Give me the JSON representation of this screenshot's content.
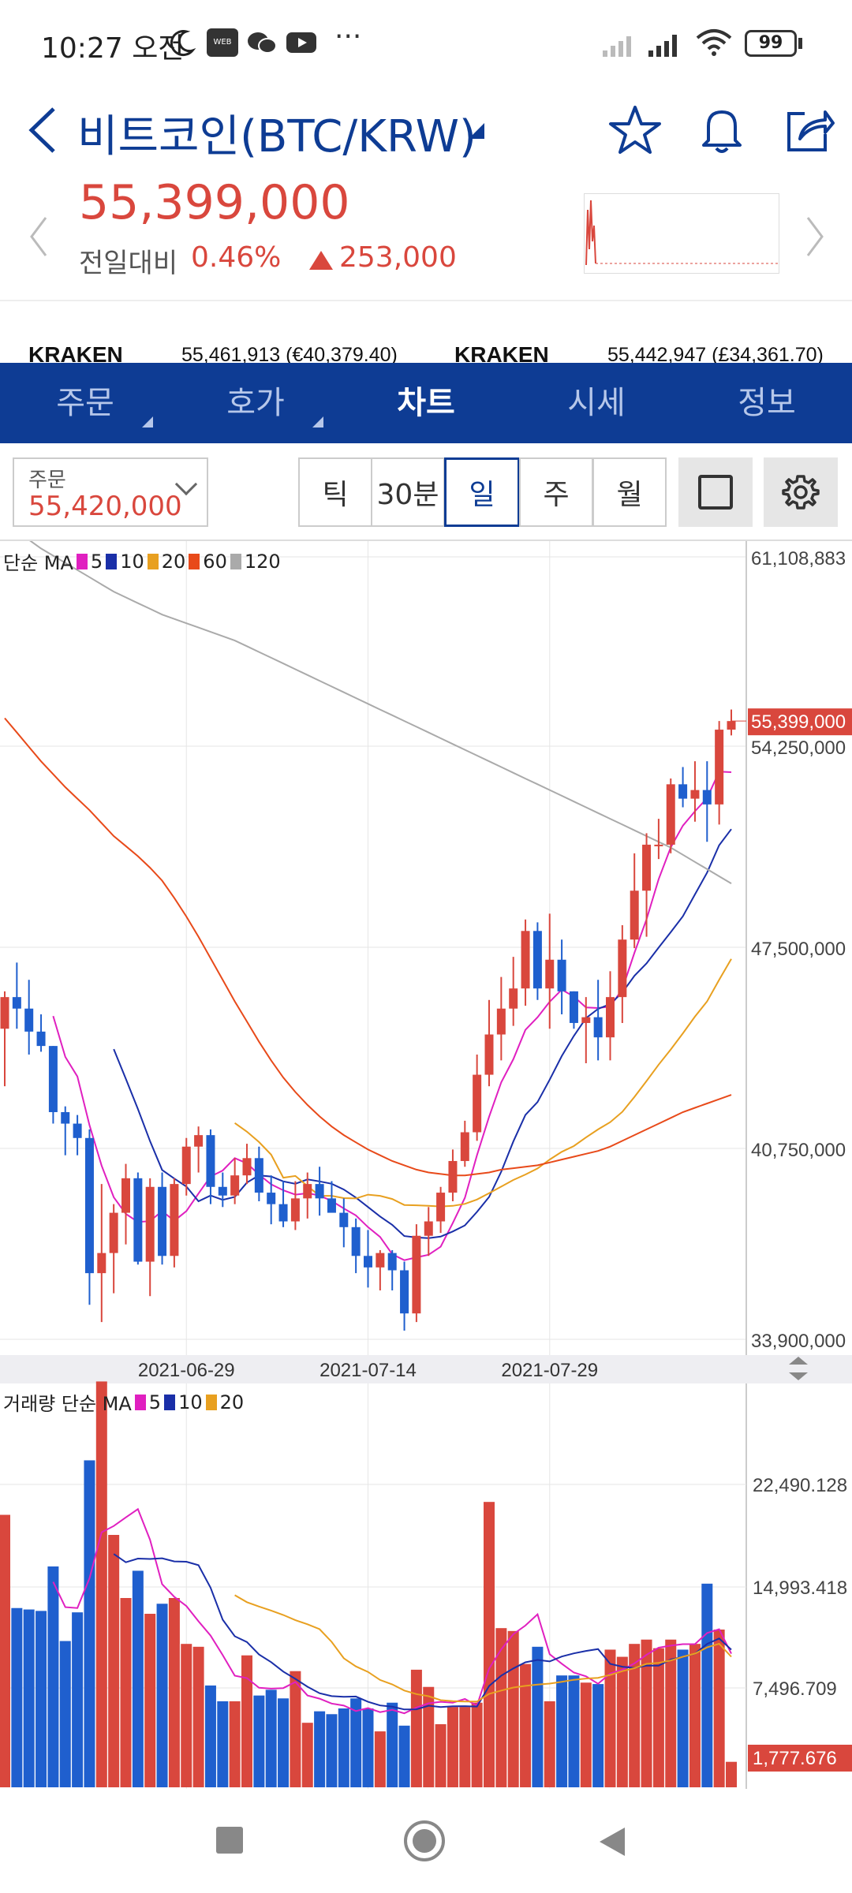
{
  "status_bar": {
    "time": "10:27 오전",
    "icons": [
      "moon-icon",
      "webtoon-icon",
      "wechat-icon",
      "youtube-icon",
      "more-icon",
      "signal-icon",
      "signal-icon",
      "wifi-icon",
      "battery-icon"
    ],
    "battery": "99"
  },
  "header": {
    "title": "비트코인(BTC/KRW)",
    "price": "55,399,000",
    "change_label": "전일대비",
    "change_pct": "0.46%",
    "change_amount": "253,000",
    "accent_color": "#d9473d",
    "brand_color": "#0e3c94"
  },
  "ticker": [
    {
      "exchange": "KRAKEN",
      "value": "55,461,913 (€40,379.40)"
    },
    {
      "exchange": "KRAKEN",
      "value": "55,442,947 (£34,361.70)"
    }
  ],
  "tabs": [
    {
      "label": "주문",
      "has_menu": true
    },
    {
      "label": "호가",
      "has_menu": true
    },
    {
      "label": "차트",
      "active": true
    },
    {
      "label": "시세"
    },
    {
      "label": "정보"
    }
  ],
  "order": {
    "label": "주문",
    "value": "55,420,000"
  },
  "periods": [
    "틱",
    "30분",
    "일",
    "주",
    "월"
  ],
  "active_period": "일",
  "price_legend": {
    "prefix": "단순 MA",
    "items": [
      {
        "label": "5",
        "color": "#e020c0"
      },
      {
        "label": "10",
        "color": "#1a2fa8"
      },
      {
        "label": "20",
        "color": "#e8a020"
      },
      {
        "label": "60",
        "color": "#e84a1a"
      },
      {
        "label": "120",
        "color": "#aaaaaa"
      }
    ]
  },
  "volume_legend": {
    "prefix": "거래량 단순 MA",
    "items": [
      {
        "label": "5",
        "color": "#e020c0"
      },
      {
        "label": "10",
        "color": "#1a2fa8"
      },
      {
        "label": "20",
        "color": "#e8a020"
      }
    ]
  },
  "chart_data": [
    {
      "type": "candlestick",
      "y_ticks": [
        "61,108,883",
        "54,250,000",
        "47,500,000",
        "40,750,000",
        "33,900,000"
      ],
      "ylim": [
        33900000,
        61108883
      ],
      "current_price_label": "55,399,000",
      "current_price": 55399000,
      "x_ticks": [
        "2021-06-29",
        "2021-07-14",
        "2021-07-29"
      ],
      "x_tick_index": [
        15,
        30,
        45
      ],
      "up_color": "#d9473d",
      "down_color": "#1f5fce",
      "ohlc": [
        [
          44700000,
          46000000,
          42700000,
          45800000
        ],
        [
          45800000,
          47000000,
          44700000,
          45400000
        ],
        [
          45400000,
          46400000,
          43800000,
          44600000
        ],
        [
          44600000,
          45200000,
          43900000,
          44100000
        ],
        [
          44100000,
          44100000,
          41400000,
          41800000
        ],
        [
          41800000,
          42000000,
          40300000,
          41400000
        ],
        [
          41400000,
          41700000,
          40300000,
          40900000
        ],
        [
          40900000,
          41200000,
          35100000,
          36200000
        ],
        [
          36200000,
          39300000,
          34500000,
          36900000
        ],
        [
          36900000,
          38600000,
          35500000,
          38300000
        ],
        [
          38300000,
          40000000,
          37200000,
          39500000
        ],
        [
          39500000,
          39700000,
          36500000,
          36600000
        ],
        [
          36600000,
          39500000,
          35400000,
          39200000
        ],
        [
          39200000,
          39700000,
          36500000,
          36800000
        ],
        [
          36800000,
          39500000,
          36400000,
          39300000
        ],
        [
          39300000,
          40900000,
          38900000,
          40600000
        ],
        [
          40600000,
          41300000,
          39700000,
          41000000
        ],
        [
          41000000,
          41200000,
          38600000,
          39200000
        ],
        [
          39200000,
          39700000,
          38500000,
          38900000
        ],
        [
          38900000,
          40200000,
          38600000,
          39600000
        ],
        [
          39600000,
          40700000,
          39300000,
          40200000
        ],
        [
          40200000,
          40600000,
          38700000,
          39000000
        ],
        [
          39000000,
          39600000,
          37900000,
          38600000
        ],
        [
          38600000,
          39400000,
          37800000,
          38000000
        ],
        [
          38000000,
          39400000,
          37700000,
          38800000
        ],
        [
          38800000,
          39700000,
          38100000,
          39300000
        ],
        [
          39300000,
          39900000,
          38200000,
          38800000
        ],
        [
          38800000,
          39400000,
          38400000,
          38300000
        ],
        [
          38300000,
          38800000,
          37100000,
          37800000
        ],
        [
          37800000,
          38100000,
          36200000,
          36800000
        ],
        [
          36800000,
          37700000,
          35700000,
          36400000
        ],
        [
          36400000,
          37000000,
          35600000,
          36900000
        ],
        [
          36900000,
          37000000,
          35600000,
          36300000
        ],
        [
          36300000,
          36600000,
          34200000,
          34800000
        ],
        [
          34800000,
          37900000,
          34500000,
          37500000
        ],
        [
          37500000,
          38500000,
          36800000,
          38000000
        ],
        [
          38000000,
          39200000,
          37600000,
          39000000
        ],
        [
          39000000,
          40500000,
          38700000,
          40100000
        ],
        [
          40100000,
          41500000,
          39900000,
          41100000
        ],
        [
          41100000,
          43800000,
          40800000,
          43100000
        ],
        [
          43100000,
          45700000,
          42700000,
          44500000
        ],
        [
          44500000,
          46500000,
          43600000,
          45400000
        ],
        [
          45400000,
          47200000,
          44800000,
          46100000
        ],
        [
          46100000,
          48500000,
          45500000,
          48100000
        ],
        [
          48100000,
          48400000,
          45700000,
          46100000
        ],
        [
          46100000,
          48700000,
          44700000,
          47100000
        ],
        [
          47100000,
          47800000,
          45200000,
          46000000
        ],
        [
          46000000,
          46000000,
          44700000,
          44900000
        ],
        [
          44900000,
          45800000,
          43500000,
          45100000
        ],
        [
          45100000,
          46400000,
          43600000,
          44400000
        ],
        [
          44400000,
          46700000,
          43600000,
          45800000
        ],
        [
          45800000,
          48300000,
          44900000,
          47800000
        ],
        [
          47800000,
          50800000,
          47500000,
          49500000
        ],
        [
          49500000,
          51500000,
          47900000,
          51100000
        ],
        [
          51100000,
          52000000,
          50600000,
          51100000
        ],
        [
          51100000,
          53400000,
          50800000,
          53200000
        ],
        [
          53200000,
          53800000,
          52400000,
          52700000
        ],
        [
          52700000,
          54000000,
          51900000,
          53000000
        ],
        [
          53000000,
          54000000,
          51200000,
          52500000
        ],
        [
          52500000,
          55400000,
          51800000,
          55100000
        ],
        [
          55100000,
          55800000,
          54900000,
          55399000
        ]
      ],
      "series": [
        {
          "name": "5",
          "color": "#e020c0",
          "values": [
            null,
            null,
            null,
            null,
            45140000,
            43720000,
            43040000,
            41340000,
            39940000,
            38840000,
            38260000,
            37980000,
            38010000,
            38360000,
            38020000,
            38360000,
            38970000,
            39560000,
            39770000,
            40200000,
            40020000,
            39630000,
            39290000,
            39080000,
            38930000,
            38980000,
            38900000,
            38710000,
            38450000,
            38210000,
            37800000,
            37460000,
            36860000,
            36650000,
            36750000,
            36840000,
            37120000,
            37940000,
            38820000,
            40300000,
            41640000,
            42840000,
            43640000,
            44660000,
            45100000,
            45640000,
            46060000,
            45820000,
            45440000,
            45420000,
            45470000,
            46080000,
            47340000,
            48500000,
            49900000,
            51010000,
            51760000,
            52260000,
            52720000,
            53640000,
            53620000
          ]
        },
        {
          "name": "10",
          "color": "#1a2fa8",
          "values": [
            null,
            null,
            null,
            null,
            null,
            null,
            null,
            null,
            null,
            43990000,
            42960000,
            41910000,
            40790000,
            39790000,
            39490000,
            39210000,
            38700000,
            38900000,
            38750000,
            38850000,
            39350000,
            39600000,
            39560000,
            39390000,
            39310000,
            39460000,
            39390000,
            39310000,
            39110000,
            38830000,
            38500000,
            38170000,
            37880000,
            37490000,
            37440000,
            37420000,
            37470000,
            37650000,
            37860000,
            38330000,
            38850000,
            39730000,
            40780000,
            41700000,
            42150000,
            42930000,
            43750000,
            44450000,
            45070000,
            45390000,
            45560000,
            45960000,
            46540000,
            46970000,
            47520000,
            48060000,
            48610000,
            49370000,
            50130000,
            51080000,
            51640000
          ]
        },
        {
          "name": "20",
          "color": "#e8a020",
          "values": [
            null,
            null,
            null,
            null,
            null,
            null,
            null,
            null,
            null,
            null,
            null,
            null,
            null,
            null,
            null,
            null,
            null,
            null,
            null,
            41420000,
            41120000,
            40760000,
            40320000,
            39520000,
            39580000,
            39230000,
            38890000,
            38890000,
            38810000,
            38800000,
            38930000,
            38890000,
            38780000,
            38570000,
            38560000,
            38540000,
            38520000,
            38540000,
            38610000,
            38760000,
            38980000,
            39210000,
            39440000,
            39630000,
            39840000,
            40150000,
            40420000,
            40620000,
            40920000,
            41200000,
            41450000,
            41810000,
            42330000,
            42880000,
            43450000,
            43980000,
            44540000,
            45120000,
            45650000,
            46400000,
            47130000
          ]
        },
        {
          "name": "60",
          "color": "#e84a1a",
          "values": [
            55500000,
            55000000,
            54500000,
            54000000,
            53550000,
            53100000,
            52700000,
            52300000,
            51850000,
            51400000,
            51050000,
            50700000,
            50300000,
            49850000,
            49250000,
            48600000,
            47900000,
            47150000,
            46400000,
            45650000,
            44950000,
            44250000,
            43600000,
            43000000,
            42500000,
            42050000,
            41650000,
            41300000,
            41000000,
            40750000,
            40500000,
            40300000,
            40100000,
            39950000,
            39800000,
            39700000,
            39650000,
            39600000,
            39600000,
            39650000,
            39700000,
            39800000,
            39850000,
            39900000,
            39950000,
            40050000,
            40150000,
            40250000,
            40350000,
            40450000,
            40600000,
            40800000,
            41000000,
            41200000,
            41400000,
            41600000,
            41800000,
            41950000,
            42100000,
            42250000,
            42400000
          ]
        },
        {
          "name": "120",
          "color": "#aaaaaa",
          "values": [
            62300000,
            62000000,
            61700000,
            61400000,
            61150000,
            60900000,
            60650000,
            60400000,
            60150000,
            59900000,
            59700000,
            59500000,
            59300000,
            59100000,
            58950000,
            58800000,
            58650000,
            58500000,
            58350000,
            58200000,
            58000000,
            57800000,
            57600000,
            57400000,
            57200000,
            57000000,
            56800000,
            56600000,
            56400000,
            56200000,
            56000000,
            55800000,
            55600000,
            55400000,
            55200000,
            55000000,
            54800000,
            54600000,
            54400000,
            54200000,
            54000000,
            53800000,
            53600000,
            53400000,
            53200000,
            53000000,
            52800000,
            52600000,
            52400000,
            52200000,
            52000000,
            51800000,
            51600000,
            51400000,
            51200000,
            51000000,
            50750000,
            50500000,
            50250000,
            50000000,
            49750000
          ]
        }
      ]
    },
    {
      "type": "bar",
      "y_ticks": [
        "22,490.128",
        "14,993.418",
        "7,496.709"
      ],
      "ylim": [
        0,
        27500
      ],
      "current_label": "1,777.676",
      "volumes": [
        19000,
        12500,
        12400,
        12300,
        15400,
        10200,
        12200,
        22800,
        28300,
        17600,
        13200,
        15100,
        12100,
        12800,
        13200,
        10000,
        9800,
        7100,
        6000,
        6000,
        9200,
        6400,
        6800,
        6200,
        8100,
        4500,
        5300,
        5100,
        5500,
        6200,
        5500,
        3900,
        5900,
        4300,
        8200,
        7000,
        4400,
        5600,
        5600,
        5900,
        19900,
        11100,
        10900,
        8600,
        9800,
        6000,
        7800,
        7800,
        7300,
        7200,
        9600,
        9100,
        10000,
        10300,
        9700,
        10300,
        9600,
        10000,
        14200,
        11000,
        1777
      ]
    }
  ],
  "nav_bar": {
    "icons": [
      "recent-apps-icon",
      "home-icon",
      "back-icon"
    ]
  }
}
